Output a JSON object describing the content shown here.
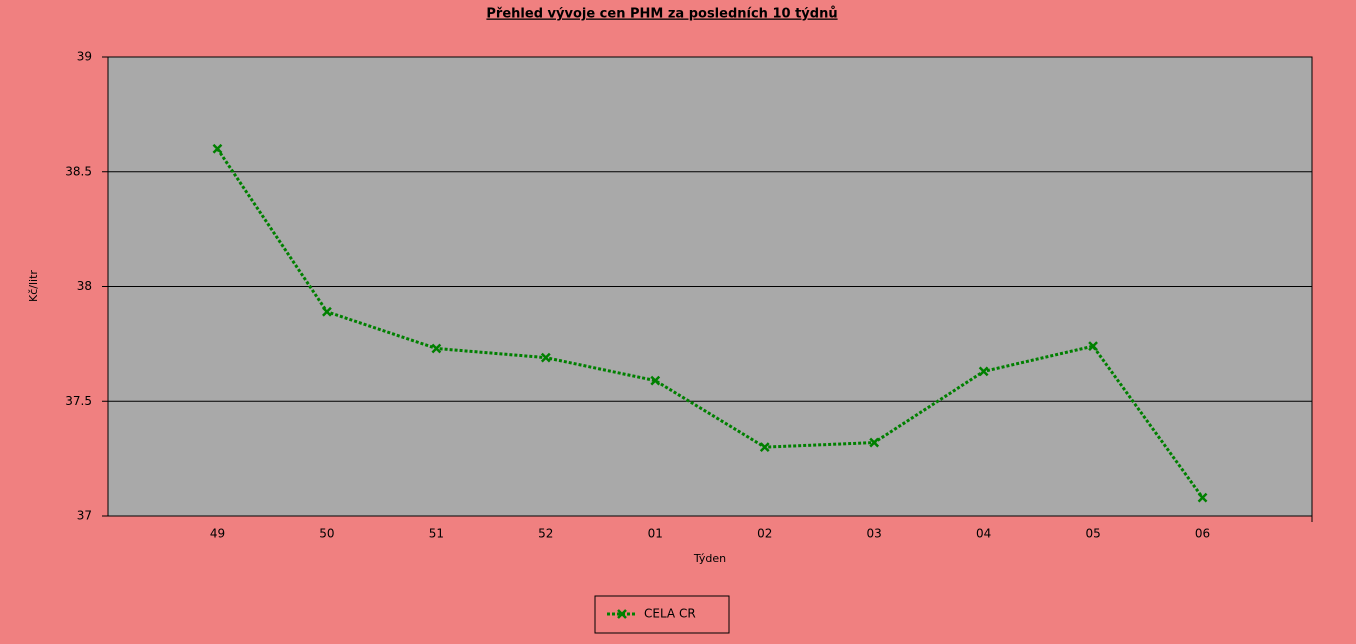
{
  "chart_data": {
    "type": "line",
    "title": "Přehled vývoje cen PHM za posledních 10 týdnů",
    "x_label": "Týden",
    "y_label": "Kč/litr",
    "categories": [
      "49",
      "50",
      "51",
      "52",
      "01",
      "02",
      "03",
      "04",
      "05",
      "06"
    ],
    "series": [
      {
        "name": "CELA CR",
        "color": "#008000",
        "values": [
          38.6,
          37.89,
          37.73,
          37.69,
          37.59,
          37.3,
          37.32,
          37.63,
          37.74,
          37.08
        ]
      }
    ],
    "ylim": [
      37,
      39
    ],
    "yticks": [
      37,
      37.5,
      38,
      38.5,
      39
    ],
    "grid": true,
    "legend": "bottom"
  }
}
